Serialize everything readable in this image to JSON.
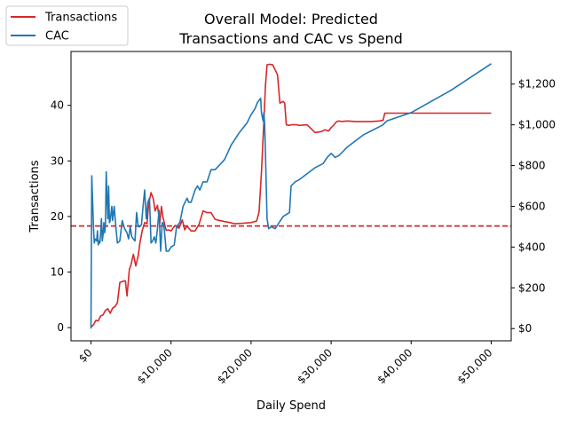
{
  "chart_data": {
    "type": "line",
    "title": "Overall Model: Predicted\nTransactions and CAC vs Spend",
    "xlabel": "Daily Spend",
    "ylabel": "Transactions",
    "y2label": "",
    "xlim": [
      -2500,
      52500
    ],
    "ylim": [
      -2.37,
      49.7
    ],
    "y2lim": [
      -60,
      1360
    ],
    "x_ticks": [
      0,
      10000,
      20000,
      30000,
      40000,
      50000
    ],
    "x_tick_labels": [
      "$0",
      "$10,000",
      "$20,000",
      "$30,000",
      "$40,000",
      "$50,000"
    ],
    "y_ticks": [
      0,
      10,
      20,
      30,
      40
    ],
    "y_tick_labels": [
      "0",
      "10",
      "20",
      "30",
      "40"
    ],
    "y2_ticks": [
      0,
      200,
      400,
      600,
      800,
      1000,
      1200
    ],
    "y2_tick_labels": [
      "$0",
      "$200",
      "$400",
      "$600",
      "$800",
      "$1,000",
      "$1,200"
    ],
    "legend_position": "top-left (outside axes)",
    "grid": false,
    "reference_line": {
      "axis": "y",
      "value": 18.3,
      "color": "#d62728",
      "style": "dashed"
    },
    "series": [
      {
        "name": "Transactions",
        "axis": "left",
        "color": "#d62728",
        "x": [
          0,
          300,
          600,
          900,
          1200,
          1500,
          1800,
          2100,
          2400,
          2700,
          3000,
          3300,
          3600,
          3900,
          4100,
          4300,
          4500,
          4800,
          5000,
          5300,
          5600,
          5900,
          6100,
          6400,
          6700,
          7000,
          7200,
          7500,
          7800,
          8000,
          8300,
          8600,
          8800,
          9000,
          9200,
          9400,
          9700,
          10000,
          10500,
          11000,
          11400,
          11700,
          12000,
          12500,
          13000,
          13500,
          14000,
          14500,
          15000,
          15500,
          16000,
          17000,
          18000,
          19000,
          20000,
          20700,
          21000,
          21300,
          21600,
          21800,
          22000,
          22300,
          22700,
          23000,
          23300,
          23600,
          24000,
          24200,
          24400,
          24800,
          25000,
          25300,
          25700,
          26000,
          27000,
          28000,
          28800,
          29200,
          29700,
          30000,
          30300,
          30700,
          31000,
          31300,
          32000,
          33000,
          34000,
          35000,
          36000,
          36500,
          36700,
          37000,
          40000,
          45000,
          50000
        ],
        "values": [
          0.1,
          0.5,
          1.3,
          1.2,
          2.1,
          2.3,
          3.1,
          3.4,
          2.6,
          3.5,
          3.8,
          4.5,
          8.1,
          8.3,
          8.4,
          8.4,
          5.7,
          10.5,
          11.3,
          13.2,
          11.1,
          13.0,
          15.2,
          17.5,
          18.9,
          18.7,
          22.3,
          24.3,
          23.1,
          21.0,
          22.0,
          18.8,
          21.8,
          19.8,
          18.6,
          17.5,
          17.6,
          17.4,
          18.4,
          17.9,
          19.4,
          17.6,
          18.3,
          17.4,
          17.4,
          18.6,
          21.0,
          20.7,
          20.7,
          19.5,
          19.3,
          19.0,
          18.7,
          18.8,
          18.9,
          19.2,
          20.8,
          28.0,
          37.0,
          43.5,
          47.3,
          47.4,
          47.3,
          46.4,
          45.5,
          40.4,
          40.7,
          40.4,
          36.5,
          36.4,
          36.5,
          36.5,
          36.5,
          36.4,
          36.5,
          35.1,
          35.3,
          35.6,
          35.4,
          36.0,
          36.4,
          37.1,
          37.2,
          37.1,
          37.2,
          37.1,
          37.1,
          37.1,
          37.2,
          37.3,
          38.6,
          38.6,
          38.6,
          38.6,
          38.6
        ]
      },
      {
        "name": "CAC",
        "axis": "right",
        "color": "#1f77b4",
        "x": [
          0,
          100,
          300,
          400,
          500,
          700,
          800,
          900,
          1000,
          1100,
          1200,
          1300,
          1400,
          1500,
          1600,
          1700,
          1800,
          1900,
          2000,
          2100,
          2200,
          2300,
          2400,
          2600,
          2700,
          2900,
          3100,
          3300,
          3600,
          3900,
          4200,
          4500,
          4700,
          4900,
          5100,
          5300,
          5500,
          5700,
          5900,
          6100,
          6300,
          6500,
          6700,
          6900,
          7100,
          7300,
          7500,
          7700,
          7900,
          8100,
          8300,
          8500,
          8700,
          8900,
          9100,
          9400,
          9700,
          10000,
          10400,
          10700,
          11100,
          11500,
          12000,
          12200,
          12500,
          13000,
          13300,
          13600,
          14000,
          14500,
          15000,
          15500,
          16000,
          16700,
          17500,
          18500,
          19500,
          20000,
          20500,
          20800,
          21200,
          21300,
          21500,
          21600,
          21700,
          21800,
          21900,
          22000,
          22200,
          22500,
          23000,
          23500,
          24000,
          24400,
          24800,
          25000,
          25500,
          26000,
          27000,
          28000,
          29000,
          29500,
          30000,
          30500,
          31000,
          31500,
          32000,
          33000,
          34000,
          35000,
          36000,
          36500,
          36700,
          37000,
          40000,
          45000,
          50000
        ],
        "values": [
          0,
          750,
          500,
          420,
          440,
          430,
          480,
          410,
          430,
          420,
          470,
          540,
          430,
          460,
          520,
          470,
          500,
          770,
          640,
          540,
          700,
          520,
          530,
          600,
          530,
          600,
          500,
          420,
          430,
          530,
          490,
          470,
          440,
          500,
          450,
          440,
          430,
          570,
          500,
          500,
          510,
          600,
          680,
          540,
          620,
          640,
          420,
          430,
          450,
          420,
          490,
          580,
          380,
          520,
          510,
          380,
          380,
          400,
          410,
          500,
          520,
          600,
          640,
          620,
          620,
          680,
          700,
          680,
          720,
          720,
          780,
          780,
          800,
          830,
          900,
          960,
          1010,
          1050,
          1080,
          1110,
          1130,
          1060,
          1020,
          1060,
          1000,
          860,
          700,
          540,
          490,
          500,
          490,
          520,
          550,
          560,
          570,
          700,
          720,
          730,
          760,
          790,
          810,
          840,
          860,
          840,
          850,
          870,
          890,
          920,
          950,
          970,
          990,
          1000,
          1010,
          1020,
          1060,
          1170,
          1300
        ]
      }
    ]
  }
}
